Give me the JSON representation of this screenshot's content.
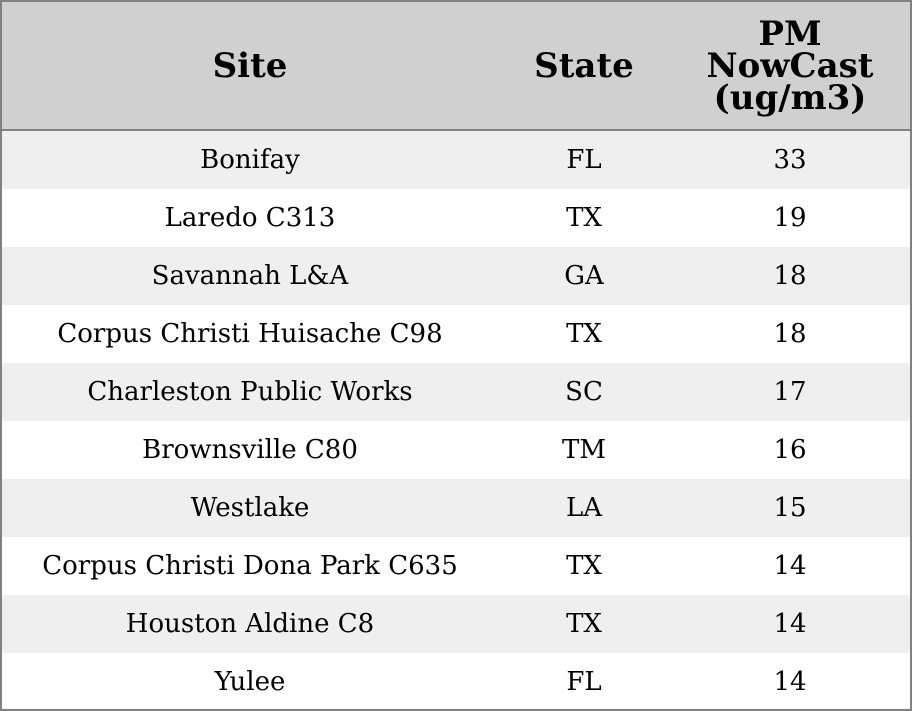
{
  "chart_data": {
    "type": "table",
    "columns": [
      "Site",
      "State",
      "PM NowCast (ug/m3)"
    ],
    "header_lines": {
      "site": [
        "Site"
      ],
      "state": [
        "State"
      ],
      "pm": [
        "PM",
        "NowCast",
        "(ug/m3)"
      ]
    },
    "rows": [
      {
        "site": "Bonifay",
        "state": "FL",
        "pm": "33"
      },
      {
        "site": "Laredo C313",
        "state": "TX",
        "pm": "19"
      },
      {
        "site": "Savannah L&A",
        "state": "GA",
        "pm": "18"
      },
      {
        "site": "Corpus Christi Huisache C98",
        "state": "TX",
        "pm": "18"
      },
      {
        "site": "Charleston Public Works",
        "state": "SC",
        "pm": "17"
      },
      {
        "site": "Brownsville C80",
        "state": "TM",
        "pm": "16"
      },
      {
        "site": "Westlake",
        "state": "LA",
        "pm": "15"
      },
      {
        "site": "Corpus Christi Dona Park C635",
        "state": "TX",
        "pm": "14"
      },
      {
        "site": "Houston Aldine C8",
        "state": "TX",
        "pm": "14"
      },
      {
        "site": "Yulee",
        "state": "FL",
        "pm": "14"
      }
    ]
  },
  "colors": {
    "header_bg": "#d0d0d0",
    "stripe": "#efefef",
    "border": "#808080"
  }
}
